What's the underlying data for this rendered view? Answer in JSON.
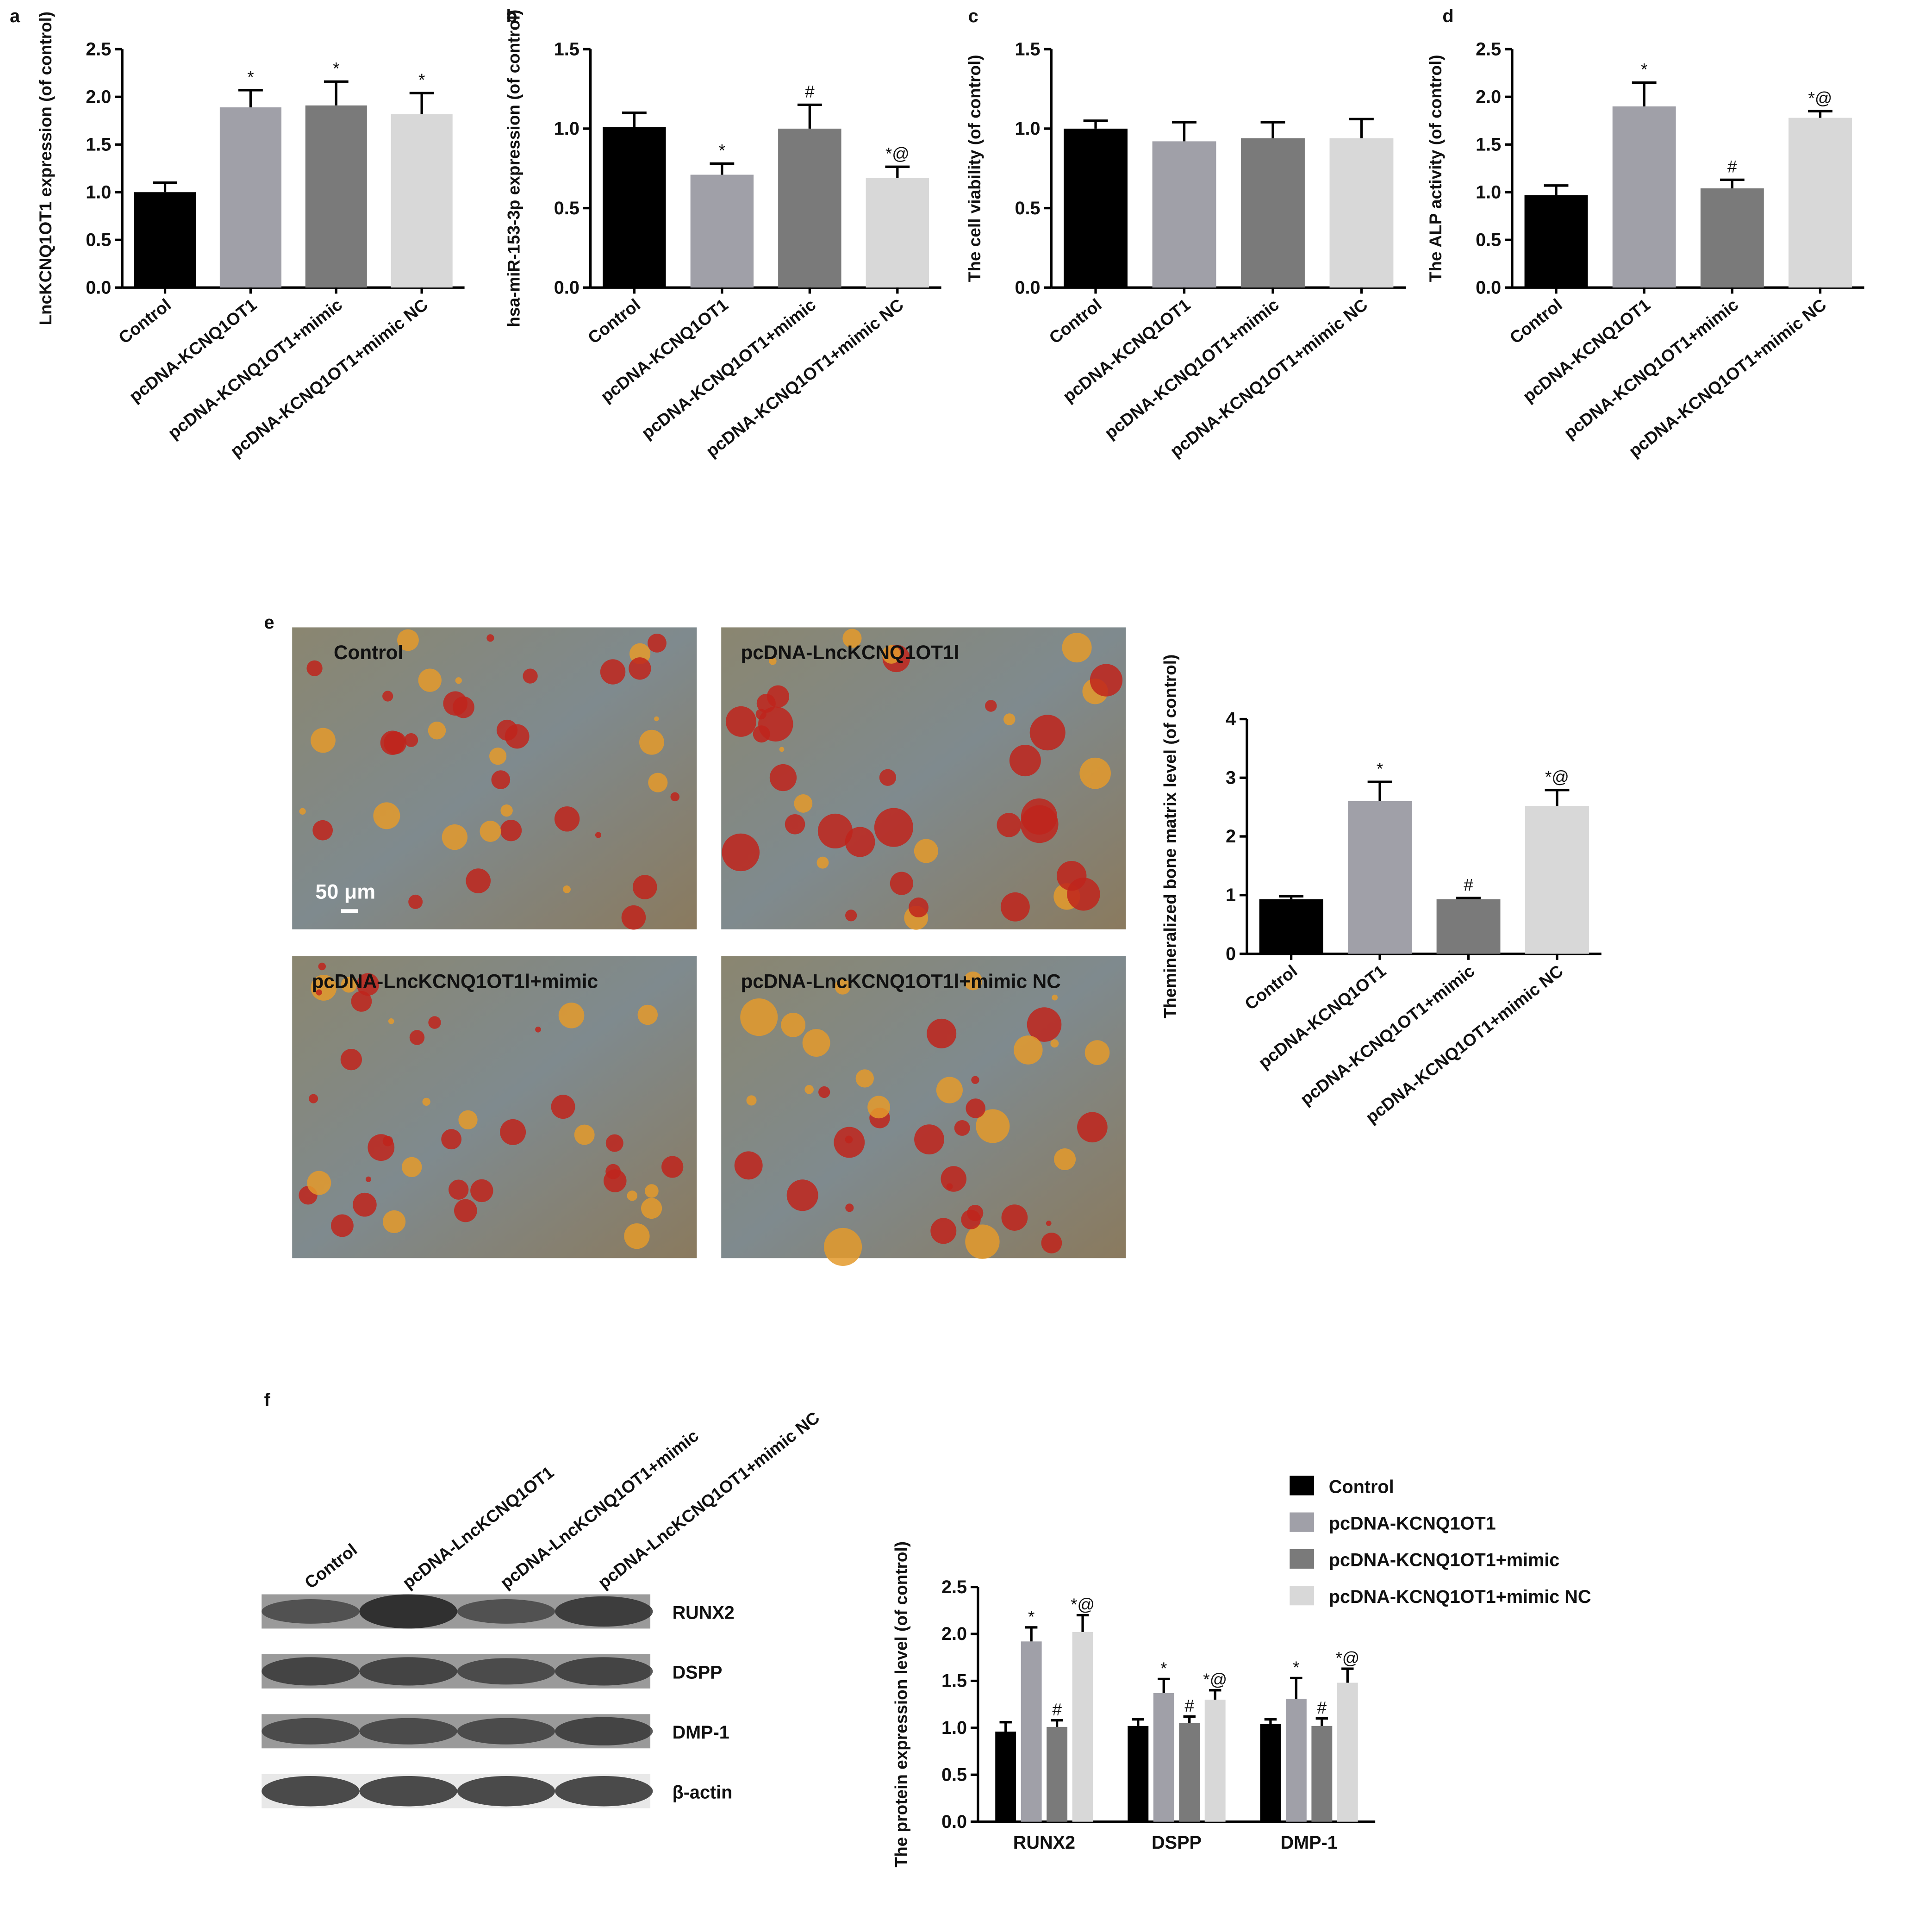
{
  "chart_data": [
    {
      "type": "bar",
      "panel": "a",
      "y_label": "LncKCNQ1OT1 expression (of control)",
      "categories": [
        "Control",
        "pcDNA-KCNQ1OT1",
        "pcDNA-KCNQ1OT1+mimic",
        "pcDNA-KCNQ1OT1+mimic NC"
      ],
      "values": [
        1.0,
        1.89,
        1.91,
        1.82
      ],
      "errors": [
        0.1,
        0.18,
        0.25,
        0.22
      ],
      "annotations": [
        null,
        "*",
        "*",
        "*"
      ],
      "colors": [
        "#000000",
        "#a0a0a8",
        "#7a7a7a",
        "#d8d8d8"
      ],
      "ylim": [
        0,
        2.5
      ],
      "yticks": [
        {
          "value": 0,
          "label": "0.0"
        },
        0.5,
        {
          "value": 1,
          "label": "1.0"
        },
        1.5,
        {
          "value": 2,
          "label": "2.0"
        },
        2.5
      ]
    },
    {
      "type": "bar",
      "panel": "b",
      "y_label": "hsa-miR-153-3p expression (of control)",
      "categories": [
        "Control",
        "pcDNA-KCNQ1OT1",
        "pcDNA-KCNQ1OT1+mimic",
        "pcDNA-KCNQ1OT1+mimic NC"
      ],
      "values": [
        1.01,
        0.71,
        1.0,
        0.69
      ],
      "errors": [
        0.09,
        0.07,
        0.15,
        0.07
      ],
      "annotations": [
        null,
        "*",
        "#",
        "*@"
      ],
      "colors": [
        "#000000",
        "#a0a0a8",
        "#7a7a7a",
        "#d8d8d8"
      ],
      "ylim": [
        0,
        1.5
      ],
      "yticks": [
        {
          "value": 0,
          "label": "0.0"
        },
        0.5,
        {
          "value": 1,
          "label": "1.0"
        },
        1.5
      ]
    },
    {
      "type": "bar",
      "panel": "c",
      "y_label": "The cell viability  (of control)",
      "categories": [
        "Control",
        "pcDNA-KCNQ1OT1",
        "pcDNA-KCNQ1OT1+mimic",
        "pcDNA-KCNQ1OT1+mimic NC"
      ],
      "values": [
        1.0,
        0.92,
        0.94,
        0.94
      ],
      "errors": [
        0.05,
        0.12,
        0.1,
        0.12
      ],
      "colors": [
        "#000000",
        "#a0a0a8",
        "#7a7a7a",
        "#d8d8d8"
      ],
      "ylim": [
        0,
        1.5
      ],
      "yticks": [
        {
          "value": 0,
          "label": "0.0"
        },
        0.5,
        {
          "value": 1,
          "label": "1.0"
        },
        1.5
      ]
    },
    {
      "type": "bar",
      "panel": "d",
      "y_label": "The ALP activity (of control)",
      "categories": [
        "Control",
        "pcDNA-KCNQ1OT1",
        "pcDNA-KCNQ1OT1+mimic",
        "pcDNA-KCNQ1OT1+mimic NC"
      ],
      "values": [
        0.97,
        1.9,
        1.04,
        1.78
      ],
      "errors": [
        0.1,
        0.25,
        0.09,
        0.07
      ],
      "annotations": [
        null,
        "*",
        "#",
        "*@"
      ],
      "colors": [
        "#000000",
        "#a0a0a8",
        "#7a7a7a",
        "#d8d8d8"
      ],
      "ylim": [
        0,
        2.5
      ],
      "yticks": [
        {
          "value": 0,
          "label": "0.0"
        },
        0.5,
        {
          "value": 1,
          "label": "1.0"
        },
        1.5,
        {
          "value": 2,
          "label": "2.0"
        },
        2.5
      ]
    },
    {
      "type": "bar",
      "panel": "e",
      "y_label": "Themineralized bone matrix level  (of control)",
      "categories": [
        "Control",
        "pcDNA-KCNQ1OT1",
        "pcDNA-KCNQ1OT1+mimic",
        "pcDNA-KCNQ1OT1+mimic NC"
      ],
      "values": [
        0.93,
        2.6,
        0.93,
        2.52
      ],
      "errors": [
        0.05,
        0.33,
        0.02,
        0.27
      ],
      "annotations": [
        null,
        "*",
        "#",
        "*@"
      ],
      "colors": [
        "#000000",
        "#a0a0a8",
        "#7a7a7a",
        "#d8d8d8"
      ],
      "ylim": [
        0,
        4
      ],
      "yticks": [
        0,
        1,
        2,
        3,
        4
      ]
    },
    {
      "type": "grouped_bar",
      "panel": "f",
      "y_label": "The protein expression level (of control)",
      "categories": [
        "RUNX2",
        "DSPP",
        "DMP-1"
      ],
      "series": [
        {
          "name": "Control",
          "color": "#000000",
          "values": [
            0.96,
            1.02,
            1.04
          ],
          "errors": [
            0.1,
            0.07,
            0.05
          ],
          "annotations": [
            null,
            null,
            null
          ]
        },
        {
          "name": "pcDNA-KCNQ1OT1",
          "color": "#a0a0a8",
          "values": [
            1.92,
            1.37,
            1.31
          ],
          "errors": [
            0.15,
            0.15,
            0.22
          ],
          "annotations": [
            "*",
            "*",
            "*"
          ]
        },
        {
          "name": "pcDNA-KCNQ1OT1+mimic",
          "color": "#7a7a7a",
          "values": [
            1.01,
            1.05,
            1.02
          ],
          "errors": [
            0.07,
            0.07,
            0.08
          ],
          "annotations": [
            "#",
            "#",
            "#"
          ]
        },
        {
          "name": "pcDNA-KCNQ1OT1+mimic NC",
          "color": "#d8d8d8",
          "values": [
            2.02,
            1.3,
            1.48
          ],
          "errors": [
            0.18,
            0.1,
            0.15
          ],
          "annotations": [
            "*@",
            "*@",
            "*@"
          ]
        }
      ],
      "ylim": [
        0,
        2.5
      ],
      "yticks": [
        {
          "value": 0,
          "label": "0.0"
        },
        0.5,
        {
          "value": 1,
          "label": "1.0"
        },
        1.5,
        {
          "value": 2,
          "label": "2.0"
        },
        2.5
      ]
    }
  ],
  "micrographs": {
    "labels": [
      "Control",
      "pcDNA-LncKCNQ1OT1l",
      "pcDNA-LncKCNQ1OT1l+mimic",
      "pcDNA-LncKCNQ1OT1l+mimic NC"
    ],
    "scale_bar": "50 μm"
  },
  "western_blot": {
    "lanes": [
      "Control",
      "pcDNA-LncKCNQ1OT1",
      "pcDNA-LncKCNQ1OT1+mimic",
      "pcDNA-LncKCNQ1OT1+mimic NC"
    ],
    "proteins": [
      "RUNX2",
      "DSPP",
      "DMP-1",
      "β-actin"
    ]
  }
}
